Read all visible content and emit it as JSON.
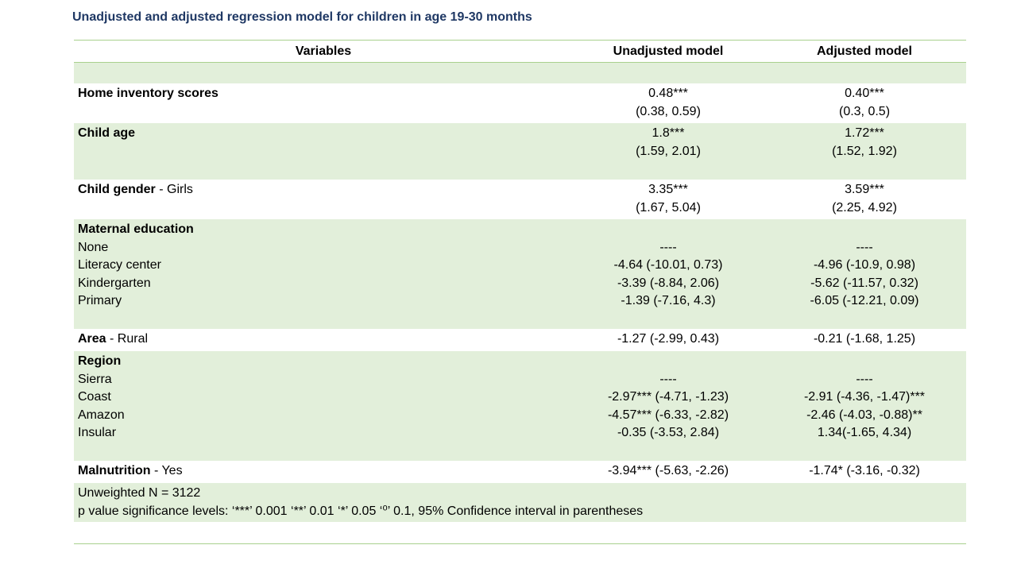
{
  "title": "Unadjusted and adjusted regression model for children in age 19-30 months",
  "columns": {
    "variables": "Variables",
    "unadjusted": "Unadjusted model",
    "adjusted": "Adjusted model"
  },
  "rows": {
    "home": {
      "label": "Home inventory scores",
      "unadj": [
        "0.48***",
        "(0.38, 0.59)"
      ],
      "adj": [
        "0.40***",
        "(0.3, 0.5)"
      ]
    },
    "age": {
      "label": "Child age",
      "unadj": [
        "1.8***",
        "(1.59, 2.01)"
      ],
      "adj": [
        "1.72***",
        "(1.52, 1.92)"
      ]
    },
    "gender": {
      "label": "Child gender",
      "suffix": " - Girls",
      "unadj": [
        "3.35***",
        "(1.67, 5.04)"
      ],
      "adj": [
        "3.59***",
        "(2.25, 4.92)"
      ]
    },
    "maternal": {
      "label": "Maternal education",
      "items": [
        "None",
        "Literacy center",
        "Kindergarten",
        "Primary"
      ],
      "unadj": [
        "----",
        "-4.64 (-10.01, 0.73)",
        "-3.39 (-8.84, 2.06)",
        "-1.39 (-7.16, 4.3)"
      ],
      "adj": [
        "----",
        "-4.96 (-10.9, 0.98)",
        "-5.62 (-11.57, 0.32)",
        "-6.05 (-12.21, 0.09)"
      ]
    },
    "area": {
      "label": "Area",
      "suffix": " - Rural",
      "unadj": "-1.27 (-2.99, 0.43)",
      "adj": "-0.21 (-1.68, 1.25)"
    },
    "region": {
      "label": "Region",
      "items": [
        "Sierra",
        "Coast",
        "Amazon",
        "Insular"
      ],
      "unadj": [
        "----",
        "-2.97*** (-4.71, -1.23)",
        "-4.57*** (-6.33, -2.82)",
        "-0.35 (-3.53, 2.84)"
      ],
      "adj": [
        "----",
        "-2.91 (-4.36, -1.47)***",
        "-2.46 (-4.03, -0.88)**",
        "1.34(-1.65, 4.34)"
      ]
    },
    "malnutrition": {
      "label": "Malnutrition",
      "suffix": " - Yes",
      "unadj": "-3.94*** (-5.63, -2.26)",
      "adj": "-1.74* (-3.16, -0.32)"
    }
  },
  "footer": {
    "n": "Unweighted N = 3122",
    "note": "p value significance levels: ‘***’ 0.001 ‘**’ 0.01 ‘*’ 0.05 ‘⁰’ 0.1, 95% Confidence interval in parentheses"
  }
}
